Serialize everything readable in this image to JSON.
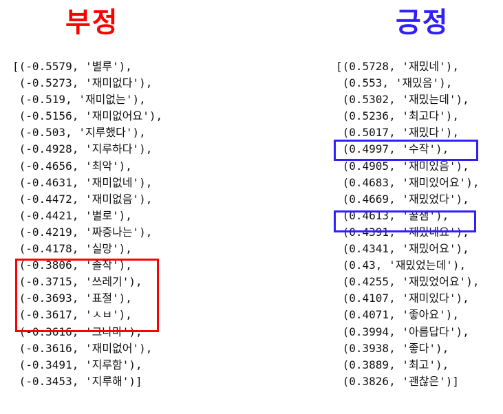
{
  "negative": {
    "heading": "부정",
    "lines": [
      "[(-0.5579, '별루'),",
      " (-0.5273, '재미없다'),",
      " (-0.519, '재미없는'),",
      " (-0.5156, '재미없어요'),",
      " (-0.503, '지루했다'),",
      " (-0.4928, '지루하다'),",
      " (-0.4656, '최악'),",
      " (-0.4631, '재미없네'),",
      " (-0.4472, '재미없음'),",
      " (-0.4421, '별로'),",
      " (-0.4219, '짜증나는'),",
      " (-0.4178, '실망'),",
      " (-0.3806, '졸작'),",
      " (-0.3715, '쓰레기'),",
      " (-0.3693, '표절'),",
      " (-0.3617, 'ㅅㅂ'),",
      " (-0.3616, '그나마'),",
      " (-0.3616, '재미없어'),",
      " (-0.3491, '지루함'),",
      " (-0.3453, '지루해')]"
    ],
    "highlight_color": "#ff0000"
  },
  "positive": {
    "heading": "긍정",
    "lines": [
      "[(0.5728, '재밌네'),",
      " (0.553, '재밌음'),",
      " (0.5302, '재밌는데'),",
      " (0.5236, '최고다'),",
      " (0.5017, '재밌다'),",
      " (0.4997, '수작'),",
      " (0.4905, '재미있음'),",
      " (0.4683, '재미있어요'),",
      " (0.4669, '재밌었다'),",
      " (0.4613, '꿀잼'),",
      " (0.4391, '재밌네요'),",
      " (0.4341, '재밌어요'),",
      " (0.43, '재밌었는데'),",
      " (0.4255, '재밌었어요'),",
      " (0.4107, '재미있다'),",
      " (0.4071, '좋아요'),",
      " (0.3994, '아름답다'),",
      " (0.3938, '좋다'),",
      " (0.3889, '최고'),",
      " (0.3826, '괜찮은')]"
    ],
    "highlight_color": "#2f1fff"
  }
}
